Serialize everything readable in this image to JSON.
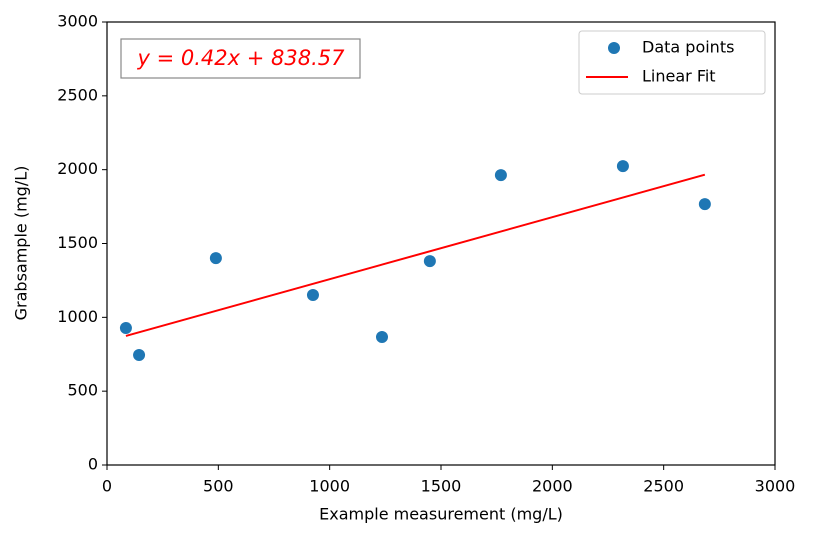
{
  "chart_data": {
    "type": "scatter",
    "xlabel": "Example measurement (mg/L)",
    "ylabel": "Grabsample (mg/L)",
    "annotation": "y = 0.42x + 838.57",
    "xlim": [
      0,
      3000
    ],
    "ylim": [
      0,
      3000
    ],
    "xticks": [
      0,
      500,
      1000,
      1500,
      2000,
      2500,
      3000
    ],
    "yticks": [
      0,
      500,
      1000,
      1500,
      2000,
      2500,
      3000
    ],
    "legend": "upper right",
    "series": [
      {
        "name": "Data points",
        "type": "scatter",
        "color": "#1f77b4",
        "x": [
          85,
          144,
          489,
          925,
          1235,
          1450,
          1769,
          2317,
          2685
        ],
        "values": [
          928,
          745,
          1401,
          1151,
          867,
          1381,
          1963,
          2024,
          1767
        ]
      },
      {
        "name": "Linear Fit",
        "type": "line",
        "color": "#ff0000",
        "x": [
          85,
          2685
        ],
        "values": [
          874,
          1966
        ]
      }
    ]
  }
}
